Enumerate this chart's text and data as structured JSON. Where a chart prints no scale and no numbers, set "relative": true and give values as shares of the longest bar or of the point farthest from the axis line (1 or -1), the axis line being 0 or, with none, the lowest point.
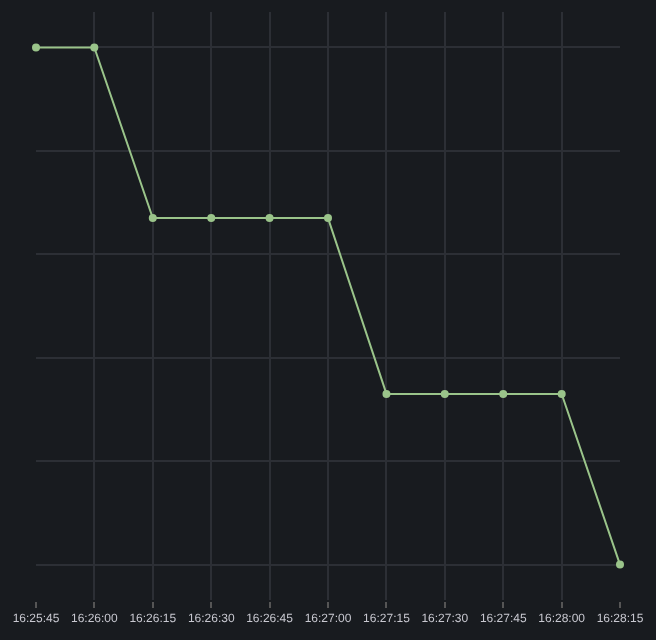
{
  "chart_data": {
    "type": "line",
    "relative": true,
    "grid": true,
    "marker": "circle",
    "line_style": "solid",
    "x": [
      16.42917,
      16.43333,
      16.4375,
      16.44167,
      16.44583,
      16.45,
      16.45417,
      16.45833,
      16.4625,
      16.46667,
      16.47083
    ],
    "series": [
      {
        "color": "#9ac48a",
        "values": [
          1,
          1,
          0.67,
          0.67,
          0.67,
          0.67,
          0.33,
          0.33,
          0.33,
          0.33,
          0
        ]
      }
    ],
    "xlim": [
      16.42917,
      16.47083
    ],
    "xticks": [
      {
        "value": 16.42917,
        "label": "16:25:45"
      },
      {
        "value": 16.43333,
        "label": "16:26:00"
      },
      {
        "value": 16.4375,
        "label": "16:26:15"
      },
      {
        "value": 16.44167,
        "label": "16:26:30"
      },
      {
        "value": 16.44583,
        "label": "16:26:45"
      },
      {
        "value": 16.45,
        "label": "16:27:00"
      },
      {
        "value": 16.45417,
        "label": "16:27:15"
      },
      {
        "value": 16.45833,
        "label": "16:27:30"
      },
      {
        "value": 16.4625,
        "label": "16:27:45"
      },
      {
        "value": 16.46667,
        "label": "16:28:00"
      },
      {
        "value": 16.47083,
        "label": "16:28:15"
      }
    ]
  }
}
